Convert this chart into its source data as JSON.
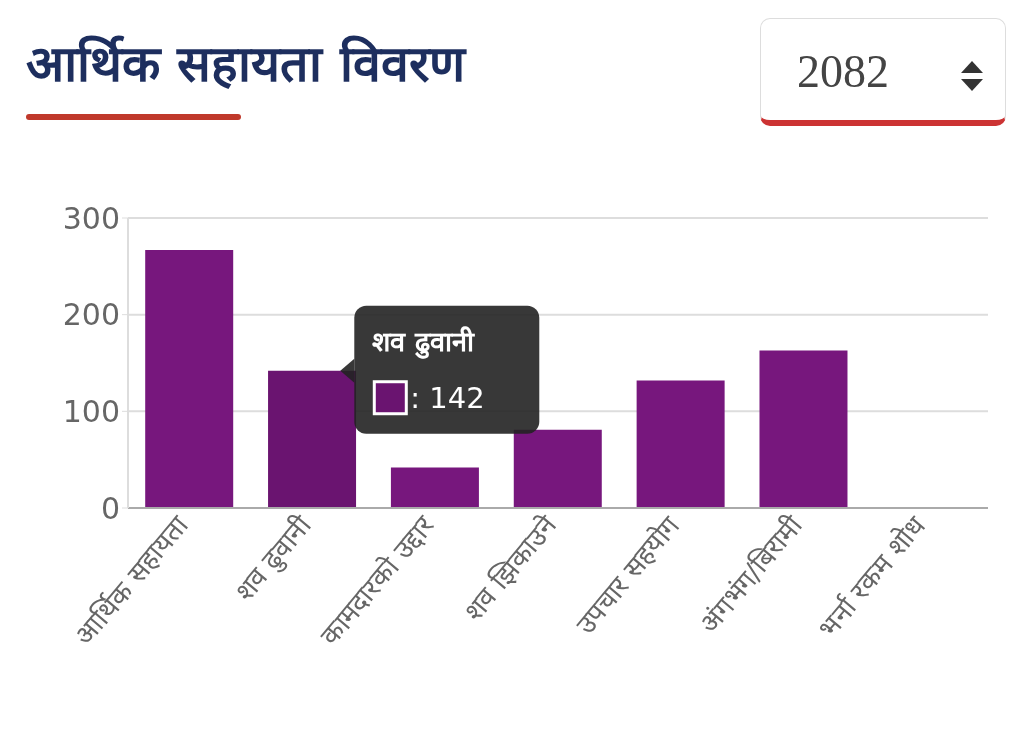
{
  "chart_data": {
    "type": "bar",
    "title": "आर्थिक सहायता विवरण",
    "categories": [
      "आर्थिक सहायता",
      "शव ढुवानी",
      "कामदारको उद्दार",
      "शव झिकाउने",
      "उपचार सहयोग",
      "अंगभंग/बिरामी",
      "भर्ना रकम शोध"
    ],
    "values": [
      267,
      142,
      42,
      81,
      132,
      163,
      0
    ],
    "colors": [
      "#77177d",
      "#6a1470",
      "#77177d",
      "#77177d",
      "#77177d",
      "#77177d",
      "#77177d"
    ],
    "ylim": [
      0,
      300
    ],
    "yticks": [
      0,
      100,
      200,
      300
    ],
    "grid": "y",
    "annotations": [
      "2082",
      {
        "text": "शव ढुवानी",
        "x": "शव ढुवानी",
        "y": 142
      },
      ": 142"
    ]
  }
}
